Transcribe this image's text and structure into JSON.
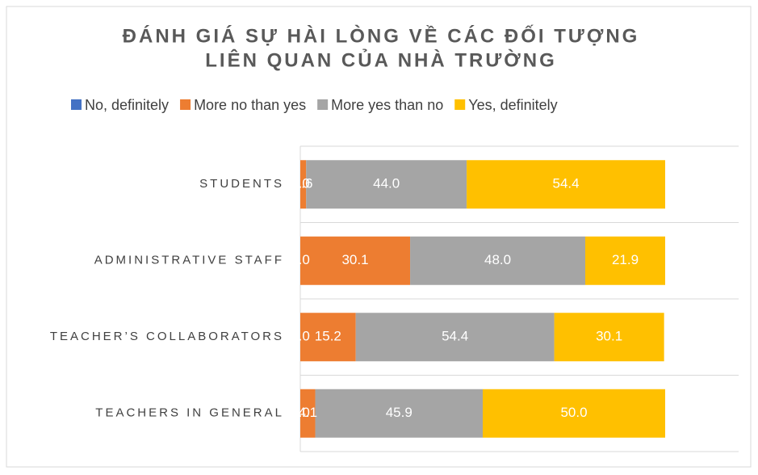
{
  "chart_data": {
    "type": "stacked_barh",
    "title": [
      "ĐÁNH GIÁ SỰ HÀI LÒNG VỀ CÁC ĐỐI TƯỢNG",
      "LIÊN QUAN CỦA NHÀ TRƯỜNG"
    ],
    "categories": [
      "STUDENTS",
      "ADMINISTRATIVE STAFF",
      "TEACHER’S COLLABORATORS",
      "TEACHERS IN GENERAL"
    ],
    "series": [
      {
        "name": "No, definitely",
        "color": "#4472c4",
        "values": [
          0,
          0,
          0,
          0
        ],
        "value_labels": [
          "0.0",
          "0.0",
          "0.0",
          "0.0"
        ]
      },
      {
        "name": "More no than yes",
        "color": "#ed7d31",
        "values": [
          1.6,
          30.1,
          15.2,
          4.1
        ],
        "value_labels": [
          "1.6",
          "30.1",
          "15.2",
          "4.1"
        ]
      },
      {
        "name": "More yes than no",
        "color": "#a5a5a5",
        "values": [
          44,
          48,
          54.4,
          45.9
        ],
        "value_labels": [
          "44.0",
          "48.0",
          "54.4",
          "45.9"
        ]
      },
      {
        "name": "Yes, definitely",
        "color": "#ffc000",
        "values": [
          54.4,
          21.9,
          30.1,
          50
        ],
        "value_labels": [
          "54.4",
          "21.9",
          "30.1",
          "50.0"
        ]
      }
    ],
    "xlim": [
      0,
      100
    ],
    "legend": "top"
  }
}
